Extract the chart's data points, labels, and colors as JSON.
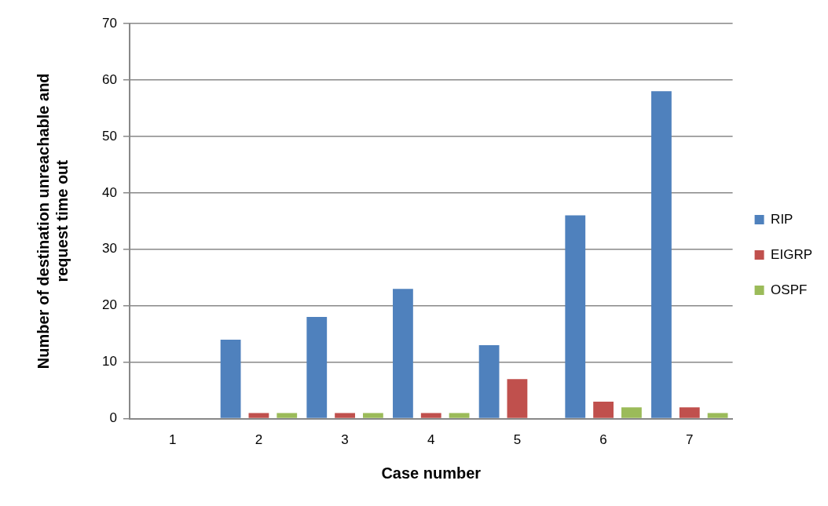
{
  "chart_data": {
    "type": "bar",
    "xlabel": "Case number",
    "ylabel": "Number of destination unreachable and request time out",
    "categories": [
      "1",
      "2",
      "3",
      "4",
      "5",
      "6",
      "7"
    ],
    "series": [
      {
        "name": "RIP",
        "color": "#4f81bd",
        "values": [
          0,
          14,
          18,
          23,
          13,
          36,
          58
        ]
      },
      {
        "name": "EIGRP",
        "color": "#c0504d",
        "values": [
          0,
          1,
          1,
          1,
          7,
          3,
          2
        ]
      },
      {
        "name": "OSPF",
        "color": "#9bbb59",
        "values": [
          0,
          1,
          1,
          1,
          0,
          2,
          1
        ]
      }
    ],
    "ylim": [
      0,
      70
    ],
    "yticks": [
      0,
      10,
      20,
      30,
      40,
      50,
      60,
      70
    ],
    "grid": "y",
    "legend": "right"
  }
}
